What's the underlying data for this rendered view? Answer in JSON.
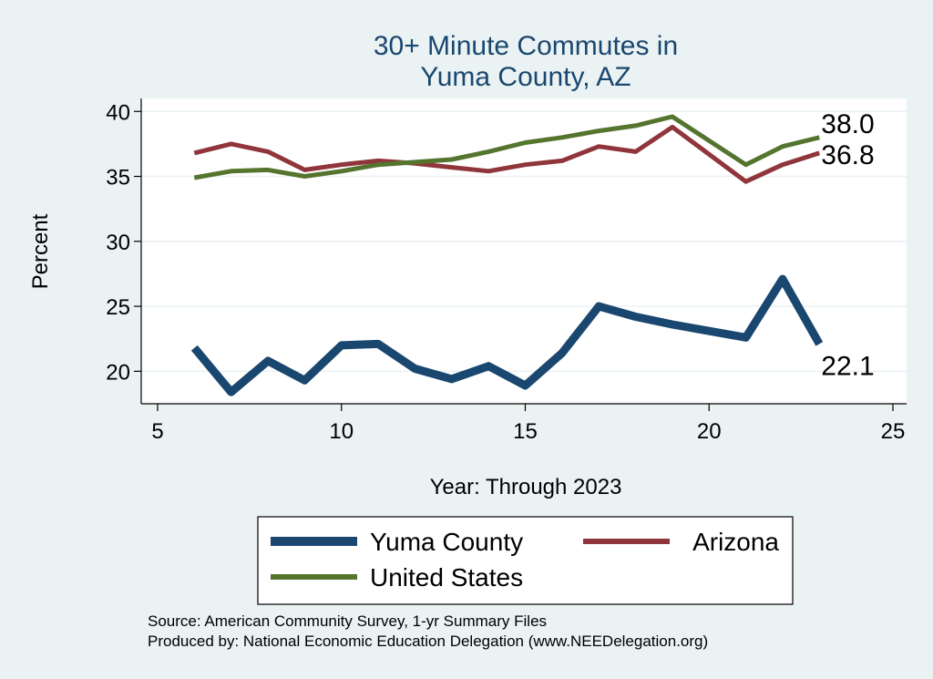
{
  "chart_data": {
    "type": "line",
    "title": [
      "30+ Minute Commutes in",
      "Yuma County, AZ"
    ],
    "xlabel": "Year: Through 2023",
    "ylabel": "Percent",
    "xlim": [
      5,
      25
    ],
    "ylim": [
      17.5,
      41
    ],
    "xticks": [
      5,
      10,
      15,
      20,
      25
    ],
    "yticks": [
      20,
      25,
      30,
      35,
      40
    ],
    "x": [
      6,
      7,
      8,
      9,
      10,
      11,
      12,
      13,
      14,
      15,
      16,
      17,
      18,
      19,
      21,
      22,
      23
    ],
    "series": [
      {
        "name": "Yuma County",
        "color": "#1a476f",
        "width": 9,
        "values": [
          21.8,
          18.4,
          20.8,
          19.3,
          22.0,
          22.1,
          20.2,
          19.4,
          20.4,
          18.9,
          21.4,
          25.0,
          24.2,
          23.6,
          22.6,
          27.1,
          22.1
        ],
        "end_label": "22.1"
      },
      {
        "name": "Arizona",
        "color": "#90353b",
        "width": 5,
        "values": [
          36.8,
          37.5,
          36.9,
          35.5,
          35.9,
          36.2,
          36.0,
          35.7,
          35.4,
          35.9,
          36.2,
          37.3,
          36.9,
          38.8,
          34.6,
          35.9,
          36.8
        ],
        "end_label": "36.8"
      },
      {
        "name": "United States",
        "color": "#55752f",
        "width": 5,
        "values": [
          34.9,
          35.4,
          35.5,
          35.0,
          35.4,
          35.9,
          36.1,
          36.3,
          36.9,
          37.6,
          38.0,
          38.5,
          38.9,
          39.6,
          35.9,
          37.3,
          38.0
        ],
        "end_label": "38.0"
      }
    ],
    "legend_position": "bottom",
    "source_lines": [
      "Source: American Community Survey, 1-yr Summary Files",
      "Produced by: National Economic Education Delegation (www.NEEDelegation.org)"
    ]
  }
}
